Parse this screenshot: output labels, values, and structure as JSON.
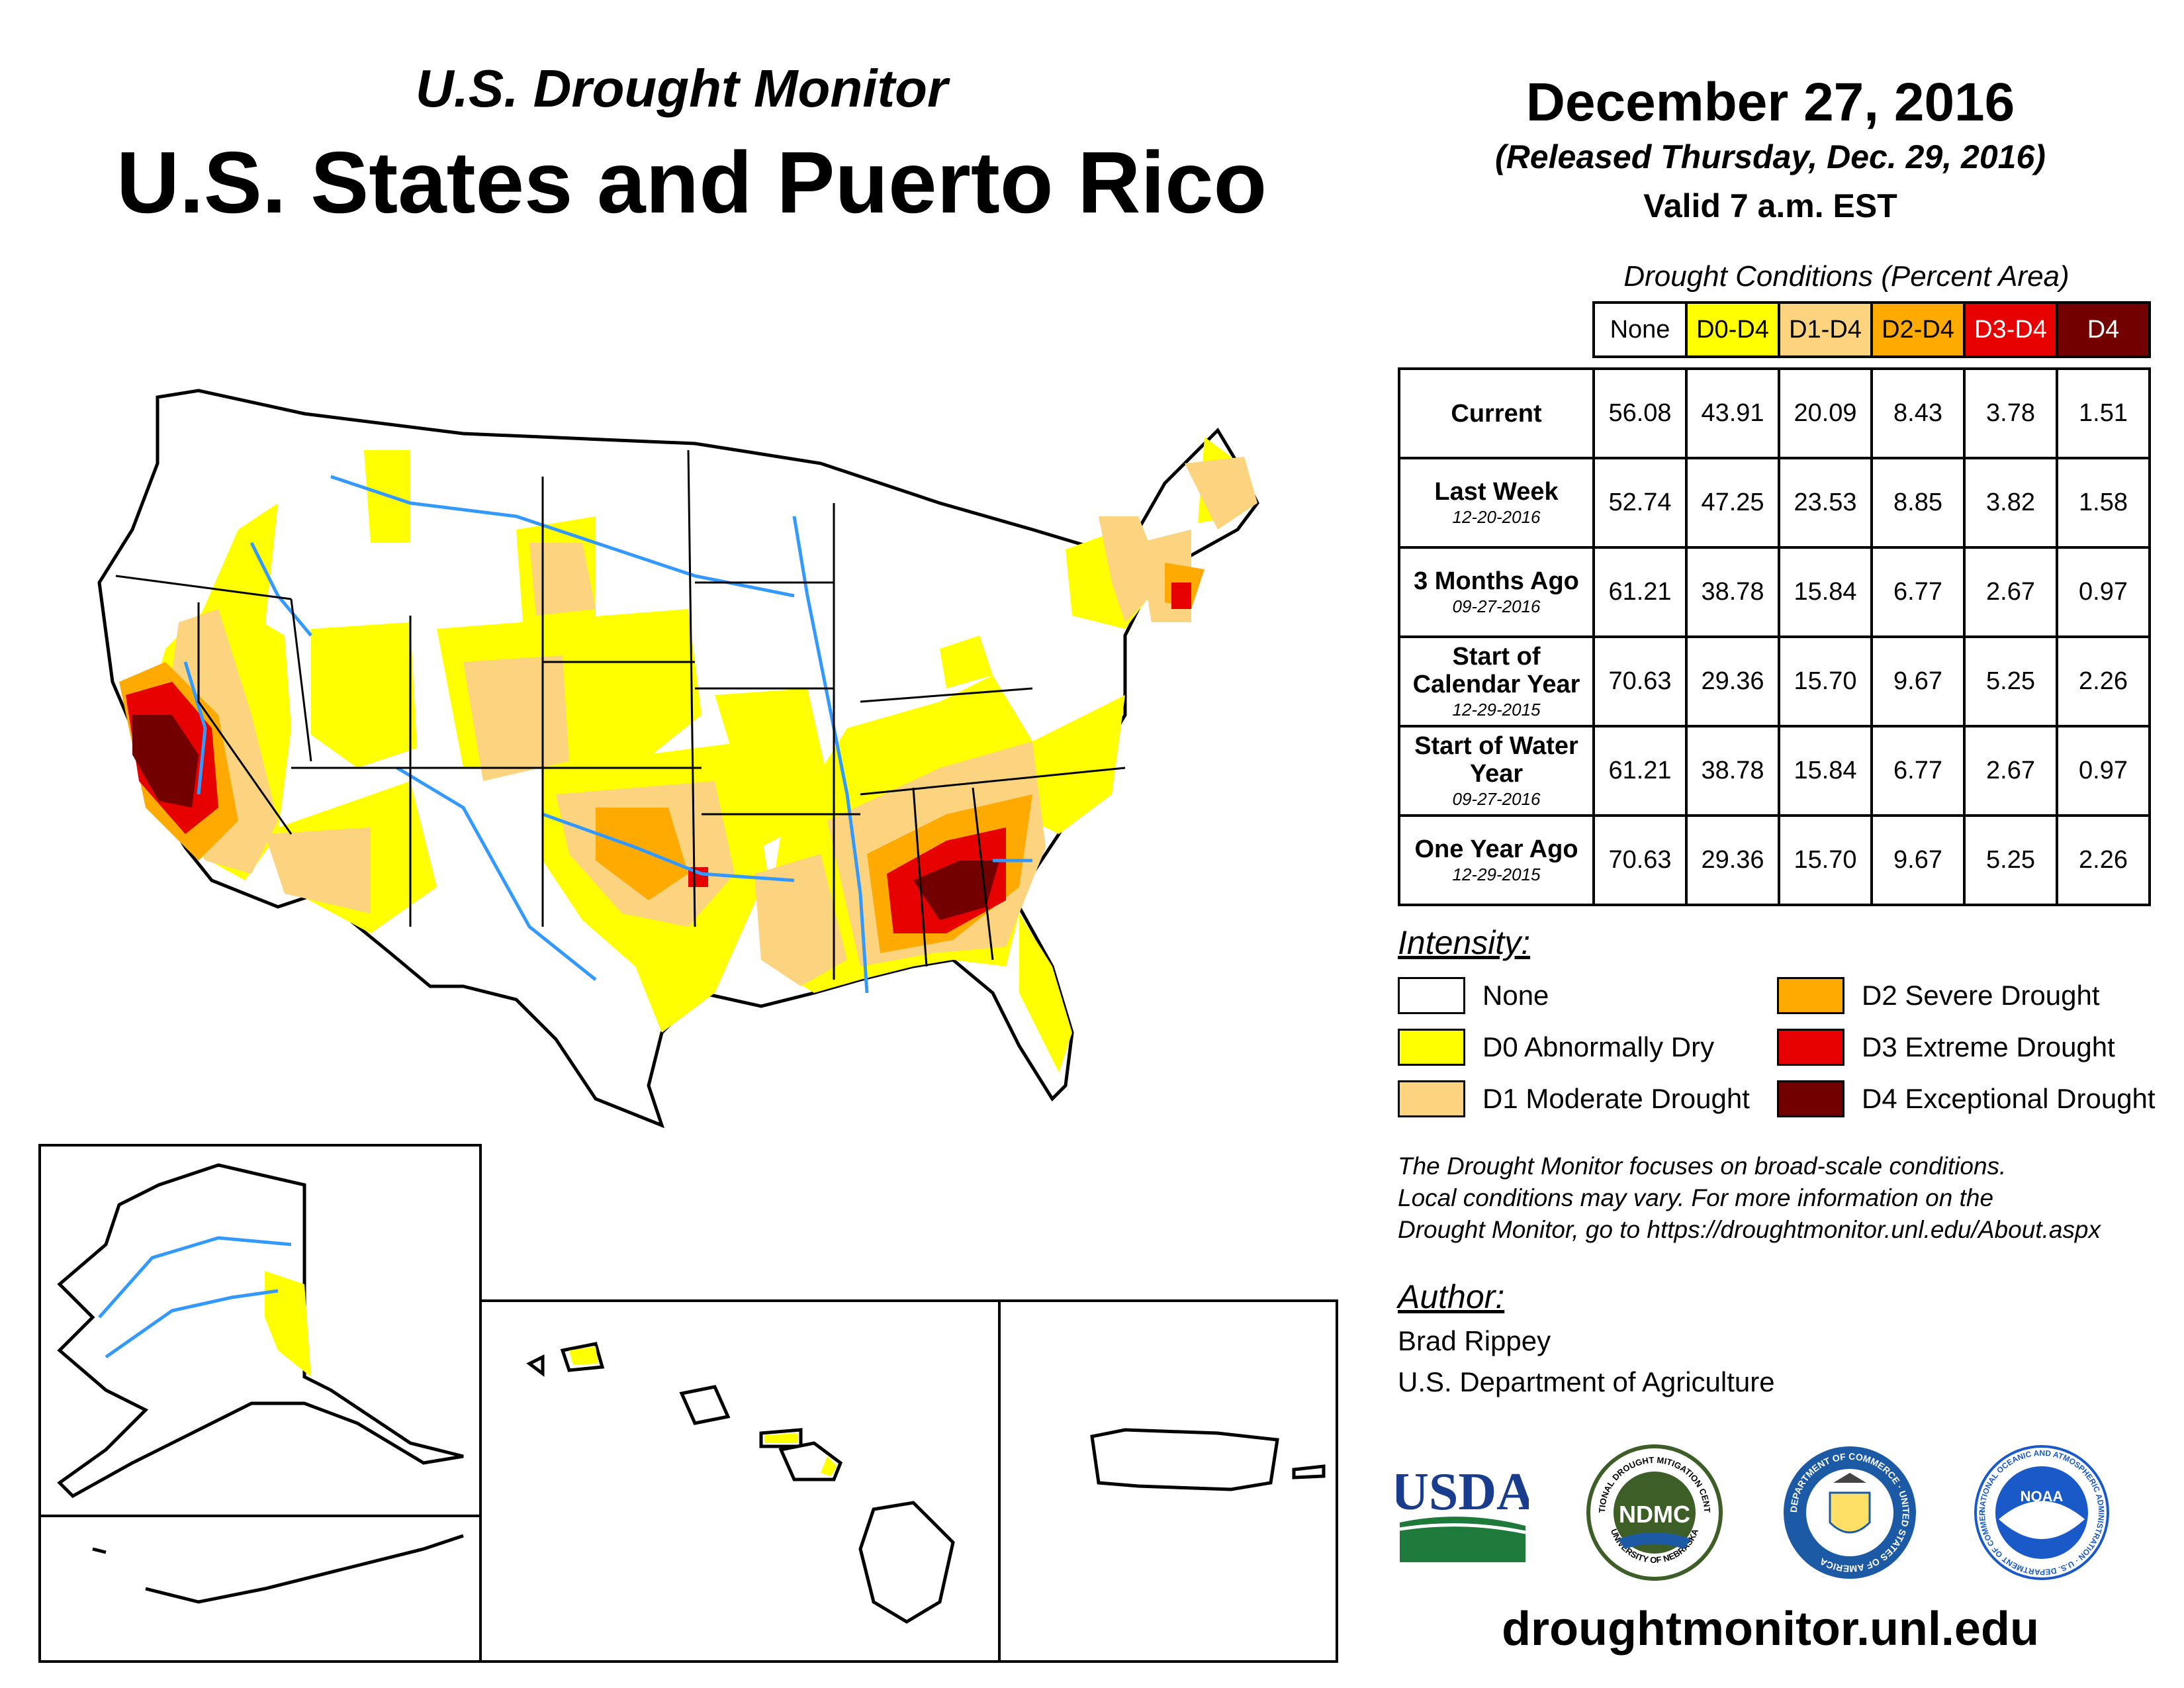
{
  "header": {
    "subtitle": "U.S. Drought Monitor",
    "title": "U.S. States and Puerto Rico",
    "date": "December 27, 2016",
    "released": "(Released Thursday, Dec. 29, 2016)",
    "valid": "Valid 7 a.m. EST"
  },
  "table": {
    "title": "Drought Conditions (Percent Area)",
    "columns": [
      "None",
      "D0-D4",
      "D1-D4",
      "D2-D4",
      "D3-D4",
      "D4"
    ],
    "rows": [
      {
        "label": "Current",
        "date": "",
        "values": [
          "56.08",
          "43.91",
          "20.09",
          "8.43",
          "3.78",
          "1.51"
        ]
      },
      {
        "label": "Last Week",
        "date": "12-20-2016",
        "values": [
          "52.74",
          "47.25",
          "23.53",
          "8.85",
          "3.82",
          "1.58"
        ]
      },
      {
        "label": "3 Months Ago",
        "date": "09-27-2016",
        "values": [
          "61.21",
          "38.78",
          "15.84",
          "6.77",
          "2.67",
          "0.97"
        ]
      },
      {
        "label": "Start of Calendar Year",
        "date": "12-29-2015",
        "values": [
          "70.63",
          "29.36",
          "15.70",
          "9.67",
          "5.25",
          "2.26"
        ]
      },
      {
        "label": "Start of Water Year",
        "date": "09-27-2016",
        "values": [
          "61.21",
          "38.78",
          "15.84",
          "6.77",
          "2.67",
          "0.97"
        ]
      },
      {
        "label": "One Year Ago",
        "date": "12-29-2015",
        "values": [
          "70.63",
          "29.36",
          "15.70",
          "9.67",
          "5.25",
          "2.26"
        ]
      }
    ]
  },
  "legend": {
    "heading": "Intensity:",
    "items": [
      {
        "label": "None",
        "color": "#ffffff"
      },
      {
        "label": "D0 Abnormally Dry",
        "color": "#ffff00"
      },
      {
        "label": "D1 Moderate Drought",
        "color": "#fcd37f"
      },
      {
        "label": "D2 Severe Drought",
        "color": "#ffaa00"
      },
      {
        "label": "D3 Extreme Drought",
        "color": "#e60000"
      },
      {
        "label": "D4 Exceptional Drought",
        "color": "#730000"
      }
    ]
  },
  "note": {
    "line1": "The Drought Monitor focuses on broad-scale conditions.",
    "line2": "Local conditions may vary. For more information on the",
    "line3": "Drought Monitor, go to https://droughtmonitor.unl.edu/About.aspx"
  },
  "author": {
    "heading": "Author:",
    "name": "Brad Rippey",
    "org": "U.S. Department of Agriculture"
  },
  "logos": {
    "usda": "USDA",
    "ndmc": "NDMC",
    "ndmc_ring_top": "NATIONAL DROUGHT MITIGATION CENTER",
    "ndmc_ring_bottom": "UNIVERSITY OF NEBRASKA",
    "commerce_ring": "DEPARTMENT OF COMMERCE · UNITED STATES OF AMERICA",
    "noaa": "NOAA",
    "noaa_ring": "NATIONAL OCEANIC AND ATMOSPHERIC ADMINISTRATION · U.S. DEPARTMENT OF COMMERCE"
  },
  "website": "droughtmonitor.unl.edu",
  "colors": {
    "none": "#ffffff",
    "d0": "#ffff00",
    "d1": "#fcd37f",
    "d2": "#ffaa00",
    "d3": "#e60000",
    "d4": "#730000",
    "river": "#3399ff",
    "usda_blue": "#1a3c8c",
    "usda_green": "#1e7a3a",
    "ndmc_green": "#3e5e28",
    "commerce_blue": "#1c5aa6",
    "noaa_blue": "#1a5ac8"
  }
}
